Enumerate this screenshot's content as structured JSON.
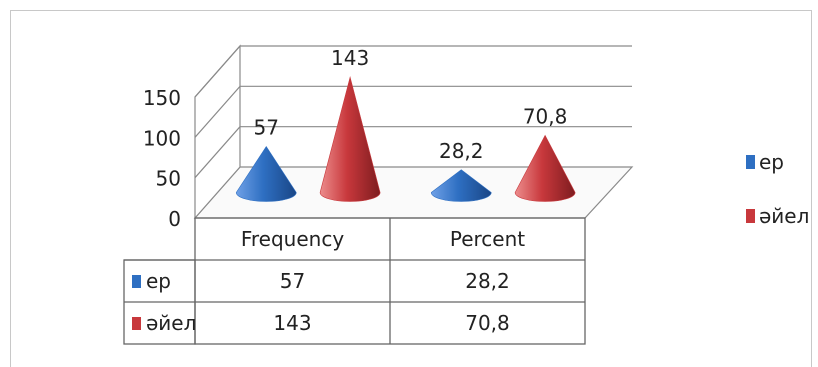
{
  "chart_data": {
    "type": "bar",
    "style": "3d-cone",
    "categories": [
      "Frequency",
      "Percent"
    ],
    "series": [
      {
        "name": "ер",
        "values": [
          57,
          28.2
        ],
        "labels": [
          "57",
          "28,2"
        ],
        "color": "#2e6fc2"
      },
      {
        "name": "әйел",
        "values": [
          143,
          70.8
        ],
        "labels": [
          "143",
          "70,8"
        ],
        "color": "#c8383c"
      }
    ],
    "y_ticks": [
      "0",
      "50",
      "100",
      "150"
    ],
    "ylim": [
      0,
      150
    ],
    "grid": true,
    "legend_position": "right",
    "data_table": true
  }
}
